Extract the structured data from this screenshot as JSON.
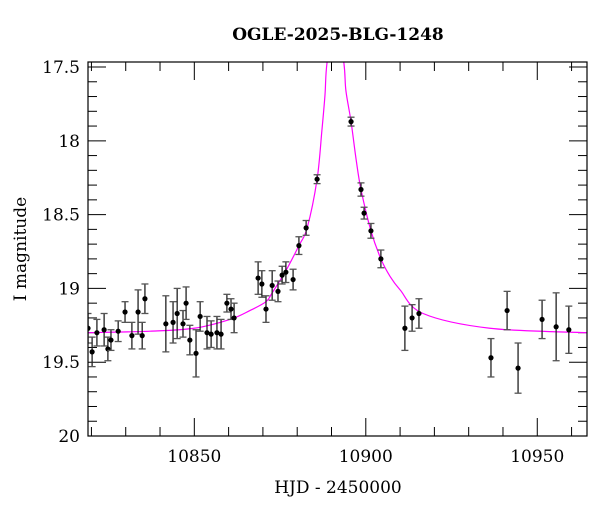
{
  "chart_data": {
    "type": "scatter",
    "title": "OGLE-2025-BLG-1248",
    "xlabel": "HJD - 2450000",
    "ylabel": "I magnitude",
    "xlim": [
      10819.0,
      10964.5
    ],
    "ylim": [
      20,
      17.466
    ],
    "y_inverted": true,
    "xticks": [
      10850,
      10900,
      10950
    ],
    "yticks": [
      17.5,
      18,
      18.5,
      19,
      19.5,
      20
    ],
    "xtick_labels": [
      "10850",
      "10900",
      "10950"
    ],
    "ytick_labels": [
      "17.5",
      "18",
      "18.5",
      "19",
      "19.5",
      "20"
    ],
    "x_minor_step": 10,
    "y_minor_step": 0.1,
    "grid": false,
    "colors": {
      "points": "#000000",
      "model": "#ff00ff",
      "errorbar_edge": "#888888"
    },
    "series": [
      {
        "kind": "points_with_errorbars",
        "x": [
          10819.0,
          10820.2,
          10821.6,
          10823.7,
          10824.8,
          10825.7,
          10827.8,
          10829.8,
          10831.8,
          10833.6,
          10834.8,
          10835.6,
          10841.7,
          10843.8,
          10845.0,
          10846.7,
          10847.6,
          10848.7,
          10850.5,
          10851.7,
          10853.7,
          10854.9,
          10856.6,
          10857.8,
          10859.5,
          10860.7,
          10861.6,
          10868.6,
          10869.7,
          10870.9,
          10872.7,
          10874.4,
          10875.6,
          10876.7,
          10878.8,
          10880.5,
          10882.6,
          10885.8,
          10895.7,
          10898.6,
          10899.5,
          10901.5,
          10904.4,
          10911.4,
          10913.5,
          10915.5,
          10936.5,
          10941.2,
          10944.4,
          10951.4,
          10955.5,
          10959.2
        ],
        "y": [
          19.27,
          19.43,
          19.3,
          19.28,
          19.41,
          19.35,
          19.29,
          19.16,
          19.32,
          19.16,
          19.32,
          19.07,
          19.24,
          19.23,
          19.17,
          19.24,
          19.1,
          19.35,
          19.44,
          19.19,
          19.3,
          19.31,
          19.3,
          19.31,
          19.1,
          19.14,
          19.2,
          18.93,
          18.97,
          19.14,
          18.98,
          19.02,
          18.91,
          18.89,
          18.94,
          18.71,
          18.59,
          18.26,
          17.87,
          18.33,
          18.49,
          18.61,
          18.8,
          19.27,
          19.2,
          19.17,
          19.47,
          19.15,
          19.54,
          19.21,
          19.26,
          19.28
        ],
        "yerr": [
          0.1,
          0.1,
          0.09,
          0.11,
          0.08,
          0.07,
          0.07,
          0.07,
          0.09,
          0.15,
          0.09,
          0.1,
          0.19,
          0.14,
          0.17,
          0.09,
          0.11,
          0.1,
          0.16,
          0.1,
          0.11,
          0.09,
          0.11,
          0.1,
          0.06,
          0.07,
          0.1,
          0.11,
          0.09,
          0.09,
          0.1,
          0.07,
          0.06,
          0.07,
          0.07,
          0.06,
          0.05,
          0.03,
          0.03,
          0.045,
          0.04,
          0.05,
          0.06,
          0.15,
          0.09,
          0.1,
          0.13,
          0.13,
          0.17,
          0.13,
          0.23,
          0.16
        ]
      },
      {
        "kind": "model_curve",
        "x": [
          10819.0,
          10837.1,
          10849.9,
          10860.4,
          10866.2,
          10870.9,
          10872.7,
          10876.7,
          10880.5,
          10882.9,
          10885.8,
          10887.2,
          10888.1,
          10888.7,
          10891.2,
          10893.6,
          10894.2,
          10895.7,
          10897.2,
          10898.6,
          10901.5,
          10904.4,
          10907.1,
          10910.0,
          10916.7,
          10936.2,
          10964.5
        ],
        "y": [
          19.3,
          19.29,
          19.27,
          19.21,
          19.15,
          19.09,
          19.03,
          18.88,
          18.71,
          18.59,
          18.26,
          17.93,
          17.69,
          17.47,
          17.1,
          17.47,
          17.66,
          17.87,
          18.13,
          18.33,
          18.61,
          18.8,
          18.92,
          19.01,
          19.17,
          19.27,
          19.3
        ]
      }
    ]
  }
}
